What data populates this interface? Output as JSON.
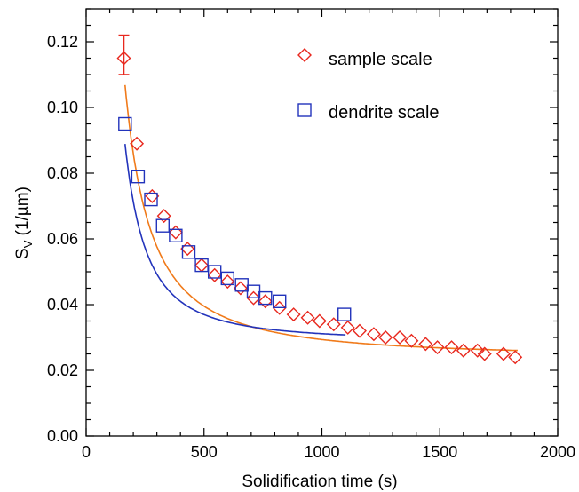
{
  "chart_data": {
    "type": "scatter",
    "title": "",
    "xlabel": "Solidification time (s)",
    "ylabel_main": "S",
    "ylabel_sub": "V",
    "ylabel_rest": " (1/µm)",
    "xlim": [
      0,
      2000
    ],
    "ylim": [
      0,
      0.13
    ],
    "x_ticks": [
      0,
      500,
      1000,
      1500,
      2000
    ],
    "x_tick_labels": [
      "0",
      "500",
      "1000",
      "1500",
      "2000"
    ],
    "y_ticks": [
      0.0,
      0.02,
      0.04,
      0.06,
      0.08,
      0.1,
      0.12
    ],
    "y_tick_labels": [
      "0.00",
      "0.02",
      "0.04",
      "0.06",
      "0.08",
      "0.10",
      "0.12"
    ],
    "grid": false,
    "legend_position": "top-right",
    "series": [
      {
        "name": "sample scale",
        "marker": "diamond",
        "color": "#e8281e",
        "fit_color": "#f07a1a",
        "error_bar": {
          "x": 160,
          "y": 0.115,
          "low": 0.11,
          "high": 0.122
        },
        "points": [
          [
            160,
            0.115
          ],
          [
            215,
            0.089
          ],
          [
            280,
            0.073
          ],
          [
            330,
            0.067
          ],
          [
            380,
            0.062
          ],
          [
            430,
            0.057
          ],
          [
            490,
            0.052
          ],
          [
            545,
            0.049
          ],
          [
            600,
            0.047
          ],
          [
            655,
            0.045
          ],
          [
            710,
            0.042
          ],
          [
            760,
            0.041
          ],
          [
            820,
            0.039
          ],
          [
            880,
            0.037
          ],
          [
            940,
            0.036
          ],
          [
            990,
            0.035
          ],
          [
            1050,
            0.034
          ],
          [
            1110,
            0.033
          ],
          [
            1160,
            0.032
          ],
          [
            1220,
            0.031
          ],
          [
            1270,
            0.03
          ],
          [
            1330,
            0.03
          ],
          [
            1380,
            0.029
          ],
          [
            1440,
            0.028
          ],
          [
            1490,
            0.027
          ],
          [
            1550,
            0.027
          ],
          [
            1600,
            0.026
          ],
          [
            1660,
            0.026
          ],
          [
            1690,
            0.025
          ],
          [
            1770,
            0.025
          ],
          [
            1820,
            0.024
          ]
        ],
        "fit": {
          "a": 0.1068,
          "b": 0.0238,
          "c": 1.5,
          "x_range": [
            165,
            1830
          ]
        }
      },
      {
        "name": "dendrite scale",
        "marker": "square",
        "color": "#2233bb",
        "fit_color": "#2233bb",
        "points": [
          [
            165,
            0.095
          ],
          [
            220,
            0.079
          ],
          [
            275,
            0.072
          ],
          [
            325,
            0.064
          ],
          [
            380,
            0.061
          ],
          [
            435,
            0.056
          ],
          [
            490,
            0.052
          ],
          [
            545,
            0.05
          ],
          [
            600,
            0.048
          ],
          [
            660,
            0.046
          ],
          [
            710,
            0.044
          ],
          [
            760,
            0.042
          ],
          [
            820,
            0.041
          ],
          [
            1095,
            0.037
          ]
        ],
        "fit": {
          "a": 0.0889,
          "b": 0.0288,
          "c": 1.8,
          "x_range": [
            165,
            1100
          ]
        }
      }
    ]
  }
}
